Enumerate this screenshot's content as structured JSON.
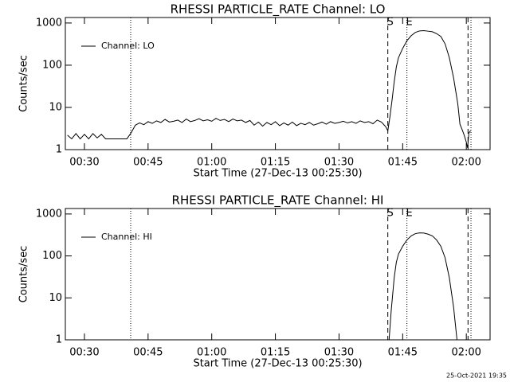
{
  "chart_data": [
    {
      "type": "line",
      "title": "RHESSI PARTICLE_RATE Channel: LO",
      "xlabel": "Start Time (27-Dec-13 00:25:30)",
      "ylabel": "Counts/sec",
      "log_y": true,
      "legend": "upper left",
      "xlim": [
        25.5,
        125.6
      ],
      "ylim": [
        1,
        1350
      ],
      "xticks": [
        {
          "value": 30,
          "label": "00:30"
        },
        {
          "value": 45,
          "label": "00:45"
        },
        {
          "value": 60,
          "label": "01:00"
        },
        {
          "value": 75,
          "label": "01:15"
        },
        {
          "value": 90,
          "label": "01:30"
        },
        {
          "value": 105,
          "label": "01:45"
        },
        {
          "value": 120,
          "label": "02:00"
        }
      ],
      "yticks": [
        1,
        10,
        100,
        1000
      ],
      "vlines": [
        {
          "x": 40.9,
          "style": "dotted"
        },
        {
          "x": 101.5,
          "style": "dashed"
        },
        {
          "x": 106,
          "style": "dotted"
        },
        {
          "x": 120.4,
          "style": "dashed"
        },
        {
          "x": 121.1,
          "style": "dotted"
        }
      ],
      "annotations": [
        {
          "text": "S",
          "x": 101.5
        },
        {
          "text": "E",
          "x": 106
        }
      ],
      "series": [
        {
          "name": "Channel: LO",
          "color": "#000000",
          "x": [
            26,
            27,
            28,
            29,
            30,
            31,
            32,
            33,
            34,
            35,
            36,
            37,
            38,
            39,
            40,
            41,
            42,
            43,
            44,
            45,
            46,
            47,
            48,
            49,
            50,
            51,
            52,
            53,
            54,
            55,
            56,
            57,
            58,
            59,
            60,
            61,
            62,
            63,
            64,
            65,
            66,
            67,
            68,
            69,
            70,
            71,
            72,
            73,
            74,
            75,
            76,
            77,
            78,
            79,
            80,
            81,
            82,
            83,
            84,
            85,
            86,
            87,
            88,
            89,
            90,
            91,
            92,
            93,
            94,
            95,
            96,
            97,
            98,
            99,
            100,
            101,
            101.5,
            102,
            102.5,
            103,
            103.5,
            104,
            105,
            106,
            107,
            108,
            109,
            110,
            111,
            112,
            113,
            114,
            115,
            116,
            117,
            118,
            118.5,
            119,
            119.5,
            120,
            120.3,
            120.6,
            121
          ],
          "values": [
            2.2,
            1.8,
            2.4,
            1.8,
            2.3,
            1.8,
            2.4,
            1.9,
            2.3,
            1.8,
            1.8,
            1.8,
            1.8,
            1.8,
            1.8,
            2.5,
            3.8,
            4.3,
            3.9,
            4.6,
            4.2,
            4.8,
            4.4,
            5.2,
            4.5,
            4.7,
            5.0,
            4.4,
            5.3,
            4.6,
            4.9,
            5.4,
            4.8,
            5.1,
            4.7,
            5.5,
            4.9,
            5.2,
            4.6,
            5.3,
            4.8,
            5.0,
            4.4,
            4.9,
            3.8,
            4.5,
            3.6,
            4.4,
            3.9,
            4.6,
            3.7,
            4.3,
            3.8,
            4.5,
            3.7,
            4.2,
            3.9,
            4.4,
            3.8,
            4.1,
            4.5,
            4.0,
            4.6,
            4.2,
            4.4,
            4.7,
            4.3,
            4.6,
            4.2,
            4.8,
            4.4,
            4.6,
            4.1,
            5.0,
            4.5,
            3.5,
            2.8,
            6,
            15,
            40,
            90,
            150,
            250,
            380,
            500,
            600,
            650,
            660,
            640,
            620,
            560,
            480,
            320,
            150,
            50,
            12,
            4,
            3,
            2.2,
            1.5,
            1.1,
            2.5,
            2.8
          ]
        }
      ]
    },
    {
      "type": "line",
      "title": "RHESSI PARTICLE_RATE Channel: HI",
      "xlabel": "Start Time (27-Dec-13 00:25:30)",
      "ylabel": "Counts/sec",
      "log_y": true,
      "legend": "upper left",
      "xlim": [
        25.5,
        125.6
      ],
      "ylim": [
        1,
        1350
      ],
      "xticks": [
        {
          "value": 30,
          "label": "00:30"
        },
        {
          "value": 45,
          "label": "00:45"
        },
        {
          "value": 60,
          "label": "01:00"
        },
        {
          "value": 75,
          "label": "01:15"
        },
        {
          "value": 90,
          "label": "01:30"
        },
        {
          "value": 105,
          "label": "01:45"
        },
        {
          "value": 120,
          "label": "02:00"
        }
      ],
      "yticks": [
        1,
        10,
        100,
        1000
      ],
      "vlines": [
        {
          "x": 40.9,
          "style": "dotted"
        },
        {
          "x": 101.5,
          "style": "dashed"
        },
        {
          "x": 106,
          "style": "dotted"
        },
        {
          "x": 120.4,
          "style": "dashed"
        },
        {
          "x": 121.1,
          "style": "dotted"
        }
      ],
      "annotations": [
        {
          "text": "S",
          "x": 101.5
        },
        {
          "text": "E",
          "x": 106
        }
      ],
      "series": [
        {
          "name": "Channel: HI",
          "color": "#000000",
          "x": [
            101.8,
            102.3,
            103,
            103.5,
            104,
            105,
            106,
            107,
            108,
            109,
            110,
            111,
            112,
            113,
            114,
            115,
            116,
            117,
            117.8
          ],
          "values": [
            1.0,
            5,
            30,
            70,
            110,
            170,
            240,
            300,
            340,
            355,
            350,
            330,
            300,
            240,
            170,
            90,
            30,
            6,
            1.0
          ]
        }
      ]
    }
  ],
  "footer": "25-Oct-2021 19:35"
}
